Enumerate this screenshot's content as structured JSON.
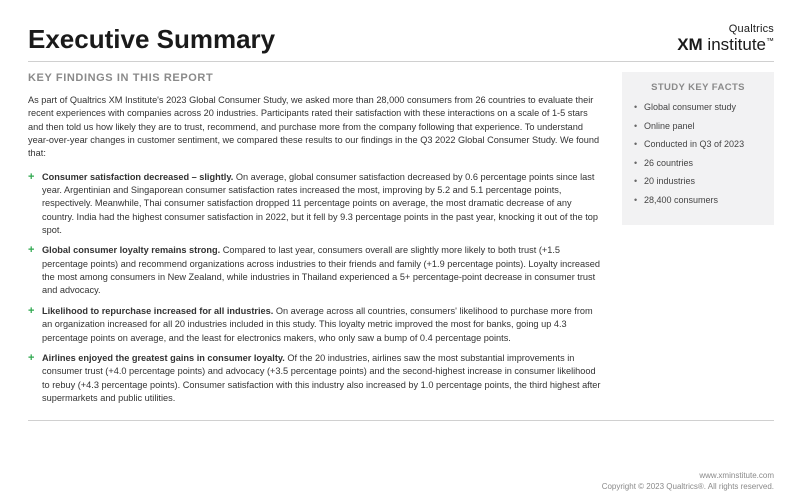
{
  "header": {
    "title": "Executive Summary",
    "logo_top": "Qualtrics",
    "logo_main_bold": "XM",
    "logo_main_rest": " institute",
    "logo_tm": "™"
  },
  "main": {
    "subhead": "KEY FINDINGS IN THIS REPORT",
    "intro": "As part of Qualtrics XM Institute's 2023 Global Consumer Study, we asked more than 28,000 consumers from 26 countries to evaluate their recent experiences with companies across 20 industries. Participants rated their satisfaction with these interactions on a scale of 1-5 stars and then told us how likely they are to trust, recommend, and purchase more from the company following that experience. To understand year-over-year changes in customer sentiment, we compared these results to our findings in the Q3 2022 Global Consumer Study. We found that:",
    "findings": [
      {
        "title": "Consumer satisfaction decreased – slightly.",
        "body": " On average, global consumer satisfaction decreased by 0.6 percentage points since last year. Argentinian and Singaporean consumer satisfaction rates increased the most, improving by 5.2 and 5.1 percentage points, respectively. Meanwhile, Thai consumer satisfaction dropped 11 percentage points on average, the most dramatic decrease of any country. India had the highest consumer satisfaction in 2022, but it fell by 9.3 percentage points in the past year, knocking it out of the top spot."
      },
      {
        "title": "Global consumer loyalty remains strong.",
        "body": " Compared to last year, consumers overall are slightly more likely to both trust (+1.5 percentage points) and recommend organizations across industries to their friends and family (+1.9 percentage points). Loyalty increased the most among consumers in New Zealand, while industries in Thailand experienced a 5+ percentage-point decrease in consumer trust and advocacy."
      },
      {
        "title": "Likelihood to repurchase increased for all industries.",
        "body": " On average across all countries, consumers' likelihood to purchase more from an organization increased for all 20 industries included in this study. This loyalty metric improved the most for banks, going up 4.3 percentage points on average, and the least for electronics makers, who only saw a bump of 0.4 percentage points."
      },
      {
        "title": "Airlines enjoyed the greatest gains in consumer loyalty.",
        "body": " Of the 20 industries, airlines saw the most substantial improvements in consumer trust (+4.0 percentage points) and advocacy (+3.5 percentage points) and the second-highest increase in consumer likelihood to rebuy (+4.3 percentage points). Consumer satisfaction with this industry also increased by 1.0 percentage points, the third highest after supermarkets and public utilities."
      }
    ]
  },
  "sidebar": {
    "head": "STUDY KEY FACTS",
    "items": [
      "Global consumer study",
      "Online panel",
      "Conducted in Q3 of 2023",
      "26 countries",
      "20 industries",
      "28,400 consumers"
    ]
  },
  "footer": {
    "url": "www.xminstitute.com",
    "copyright": "Copyright © 2023 Qualtrics®. All rights reserved."
  },
  "colors": {
    "accent_green": "#2fa84f",
    "muted_grey": "#8a8a8a",
    "divider": "#d0d0d0",
    "facts_bg": "#f2f2f3",
    "text": "#333333"
  }
}
